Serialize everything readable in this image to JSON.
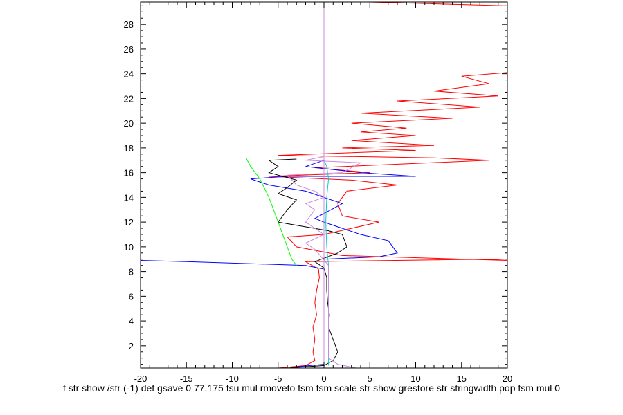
{
  "chart_data": {
    "type": "line",
    "title": "",
    "xlabel": "",
    "ylabel": "",
    "xlim": [
      -20,
      20
    ],
    "ylim": [
      0.2,
      29.8
    ],
    "x_ticks": [
      -20,
      -15,
      -10,
      -5,
      0,
      5,
      10,
      15,
      20
    ],
    "y_ticks": [
      2,
      4,
      6,
      8,
      10,
      12,
      14,
      16,
      18,
      20,
      22,
      24,
      26,
      28
    ],
    "grid": false,
    "stray_text": "f str show /str (-1) def gsave 0 77.175 fsu mul rmoveto fsm fsm scale str show grestore str stringwidth pop fsm mul 0",
    "series": [
      {
        "color": "#ff0000",
        "points": [
          [
            -5,
            0.2
          ],
          [
            -2,
            0.4
          ],
          [
            -1,
            0.8
          ],
          [
            -1.2,
            1.5
          ],
          [
            -1.0,
            2.5
          ],
          [
            -1.2,
            3.5
          ],
          [
            -0.8,
            4.5
          ],
          [
            -1.0,
            5.5
          ],
          [
            -0.8,
            6.5
          ],
          [
            -0.5,
            7.5
          ],
          [
            -0.6,
            8.2
          ],
          [
            -2,
            8.8
          ],
          [
            18,
            9.0
          ],
          [
            20,
            8.9
          ],
          [
            2,
            9.3
          ],
          [
            -3,
            10.0
          ],
          [
            -4,
            10.8
          ],
          [
            0,
            11.0
          ],
          [
            3,
            11.5
          ],
          [
            6,
            12.0
          ],
          [
            2,
            12.5
          ],
          [
            1.5,
            13.5
          ],
          [
            2.5,
            14.5
          ],
          [
            8,
            15.0
          ],
          [
            3,
            15.4
          ],
          [
            -6,
            15.7
          ],
          [
            5,
            16.0
          ],
          [
            -1,
            16.4
          ],
          [
            18,
            17.0
          ],
          [
            12,
            17.2
          ],
          [
            -5,
            17.4
          ],
          [
            10,
            17.8
          ],
          [
            2,
            18.0
          ],
          [
            12,
            18.2
          ],
          [
            3,
            18.6
          ],
          [
            10,
            19.0
          ],
          [
            4,
            19.3
          ],
          [
            9,
            19.6
          ],
          [
            3,
            20.0
          ],
          [
            14,
            20.4
          ],
          [
            4,
            20.8
          ],
          [
            17,
            21.3
          ],
          [
            8,
            21.8
          ],
          [
            19,
            22.2
          ],
          [
            12,
            22.6
          ],
          [
            18,
            23.2
          ],
          [
            15,
            23.8
          ],
          [
            20,
            24.1
          ]
        ]
      },
      {
        "color": "#ff0000",
        "points": [
          [
            5,
            29.8
          ],
          [
            20,
            29.5
          ]
        ]
      },
      {
        "color": "#0000ff",
        "points": [
          [
            -20,
            8.9
          ],
          [
            -15,
            8.8
          ],
          [
            -2,
            8.5
          ],
          [
            0,
            8.2
          ],
          [
            0,
            7.0
          ],
          [
            0,
            5.0
          ],
          [
            0,
            3.0
          ],
          [
            0,
            1.0
          ],
          [
            0,
            0.5
          ],
          [
            -3,
            0.3
          ],
          [
            0,
            0.5
          ],
          [
            0,
            8.3
          ],
          [
            0,
            9.0
          ],
          [
            6,
            9.2
          ],
          [
            8,
            9.5
          ],
          [
            7,
            10.5
          ],
          [
            4,
            11.0
          ],
          [
            2,
            11.5
          ],
          [
            0,
            12.0
          ],
          [
            -1,
            12.3
          ],
          [
            2,
            13.5
          ],
          [
            0,
            14.0
          ],
          [
            -2,
            14.5
          ],
          [
            -6,
            15.0
          ],
          [
            -8,
            15.5
          ],
          [
            -4,
            15.7
          ],
          [
            10,
            15.7
          ],
          [
            4,
            16.0
          ],
          [
            -2,
            16.5
          ],
          [
            0,
            17.0
          ]
        ]
      },
      {
        "color": "#000000",
        "points": [
          [
            -4,
            0.2
          ],
          [
            0,
            0.4
          ],
          [
            1,
            0.8
          ],
          [
            1.5,
            1.5
          ],
          [
            1.0,
            2.5
          ],
          [
            0.5,
            3.5
          ],
          [
            0.6,
            4.5
          ],
          [
            0.4,
            5.5
          ],
          [
            0.3,
            6.5
          ],
          [
            0.3,
            7.5
          ],
          [
            0.0,
            8.3
          ],
          [
            -1,
            8.8
          ],
          [
            1.5,
            9.5
          ],
          [
            2.5,
            10.0
          ],
          [
            2.0,
            11.0
          ],
          [
            0.5,
            11.3
          ],
          [
            -5,
            12.0
          ],
          [
            -4,
            13.0
          ],
          [
            -3,
            13.8
          ],
          [
            -5,
            14.3
          ],
          [
            -4,
            14.8
          ],
          [
            -3,
            15.4
          ],
          [
            -6,
            16.0
          ],
          [
            -5,
            16.5
          ],
          [
            -6,
            17.0
          ],
          [
            -3,
            17.1
          ]
        ]
      },
      {
        "color": "#00ff00",
        "points": [
          [
            -3,
            8.5
          ],
          [
            -3.5,
            9.0
          ],
          [
            -4.0,
            10.0
          ],
          [
            -5.0,
            12.0
          ],
          [
            -6.0,
            14.0
          ],
          [
            -7.0,
            15.5
          ],
          [
            -8.0,
            16.5
          ],
          [
            -8.5,
            17.2
          ]
        ]
      },
      {
        "color": "#00cccc",
        "points": [
          [
            0.5,
            0.4
          ],
          [
            0.5,
            1.5
          ],
          [
            0.5,
            3.0
          ],
          [
            0.5,
            5.0
          ],
          [
            0.5,
            7.0
          ],
          [
            0.5,
            8.5
          ],
          [
            0.3,
            10.0
          ],
          [
            0.2,
            12.0
          ],
          [
            0.3,
            14.0
          ],
          [
            0.5,
            15.5
          ],
          [
            0.3,
            16.5
          ],
          [
            0,
            17.0
          ]
        ]
      },
      {
        "color": "#cc88dd",
        "points": [
          [
            0,
            0.2
          ],
          [
            0,
            29.8
          ]
        ]
      },
      {
        "color": "#cc88dd",
        "points": [
          [
            3.5,
            0.2
          ],
          [
            1.5,
            0.5
          ],
          [
            0.5,
            1.0
          ],
          [
            0.5,
            5.0
          ],
          [
            0.5,
            8.5
          ],
          [
            -1,
            9.8
          ],
          [
            -2,
            10.3
          ],
          [
            0,
            11.0
          ],
          [
            -2,
            12.0
          ],
          [
            -1,
            13.0
          ],
          [
            -2,
            13.5
          ],
          [
            0,
            14.0
          ],
          [
            -1,
            14.5
          ],
          [
            -3,
            15.0
          ],
          [
            -4,
            15.8
          ],
          [
            2,
            16.0
          ],
          [
            4,
            16.8
          ],
          [
            -2,
            17.0
          ],
          [
            0,
            17.3
          ]
        ]
      }
    ]
  }
}
